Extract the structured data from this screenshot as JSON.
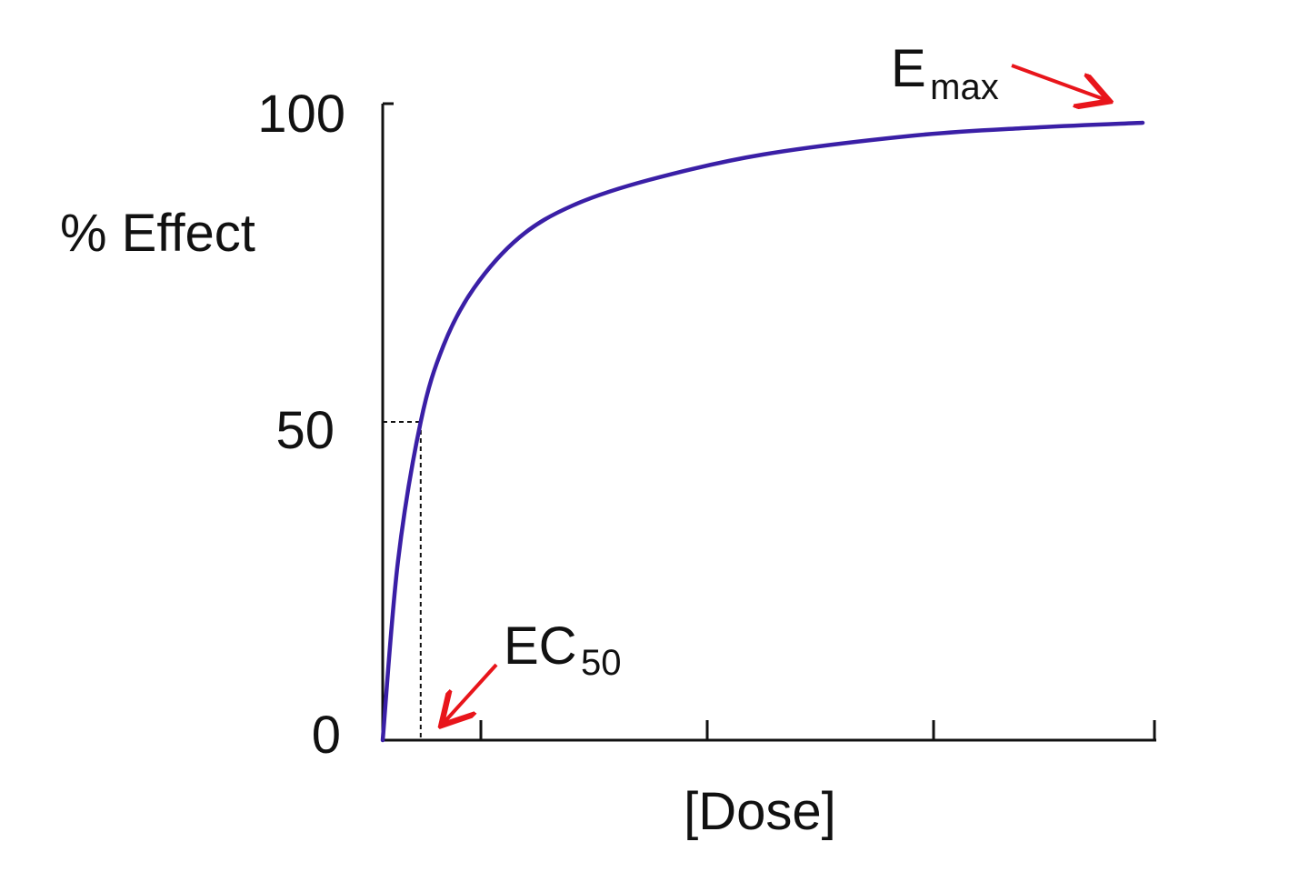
{
  "chart_data": {
    "type": "line",
    "title": "",
    "xlabel": "[Dose]",
    "ylabel": "% Effect",
    "ylim": [
      0,
      100
    ],
    "xlim": [
      0,
      100
    ],
    "y_ticks": [
      "0",
      "50",
      "100"
    ],
    "x_tick_count_unlabeled": 4,
    "grid": false,
    "series": [
      {
        "color": "#3a1fa6",
        "x": [
          0,
          2,
          5,
          8,
          12,
          18,
          25,
          35,
          50,
          70,
          85,
          100
        ],
        "y": [
          0,
          28,
          50,
          62,
          71,
          79,
          84,
          88,
          92,
          95,
          96.2,
          97
        ]
      }
    ],
    "ec50_guide": {
      "x": 5,
      "y": 50
    },
    "annotations": {
      "emax": {
        "main": "E",
        "sub": "max",
        "arrow_color": "#e8151b"
      },
      "ec50": {
        "main": "EC",
        "sub": "50",
        "arrow_color": "#e8151b"
      }
    }
  }
}
